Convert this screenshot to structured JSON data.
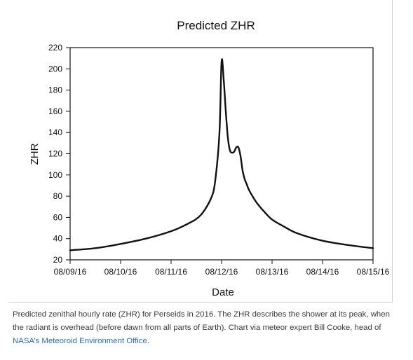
{
  "chart_data": {
    "type": "line",
    "title": "Predicted ZHR",
    "xlabel": "Date",
    "ylabel": "ZHR",
    "x_tick_labels": [
      "08/09/16",
      "08/10/16",
      "08/11/16",
      "08/12/16",
      "08/13/16",
      "08/14/16",
      "08/15/16"
    ],
    "y_tick_labels": [
      "20",
      "40",
      "60",
      "80",
      "100",
      "120",
      "140",
      "160",
      "180",
      "200",
      "220"
    ],
    "ylim": [
      20,
      220
    ],
    "xlim": [
      "08/09/16",
      "08/15/16"
    ],
    "grid": false,
    "legend": "none",
    "series": [
      {
        "color": "#111111",
        "x": [
          "2016-08-09 00:00",
          "2016-08-09 12:00",
          "2016-08-10 00:00",
          "2016-08-10 12:00",
          "2016-08-11 00:00",
          "2016-08-11 08:00",
          "2016-08-11 14:00",
          "2016-08-11 19:00",
          "2016-08-11 21:00",
          "2016-08-11 23:00",
          "2016-08-12 00:00",
          "2016-08-12 01:00",
          "2016-08-12 02:00",
          "2016-08-12 03:00",
          "2016-08-12 04:00",
          "2016-08-12 05:00",
          "2016-08-12 06:00",
          "2016-08-12 07:00",
          "2016-08-12 08:00",
          "2016-08-12 09:00",
          "2016-08-12 10:00",
          "2016-08-12 11:00",
          "2016-08-12 12:00",
          "2016-08-12 13:00",
          "2016-08-12 15:00",
          "2016-08-12 17:00",
          "2016-08-12 20:00",
          "2016-08-13 00:00",
          "2016-08-13 06:00",
          "2016-08-13 12:00",
          "2016-08-14 00:00",
          "2016-08-14 12:00",
          "2016-08-15 00:00"
        ],
        "y": [
          29,
          31,
          35,
          40,
          47,
          54,
          62,
          78,
          95,
          140,
          207,
          190,
          160,
          135,
          123,
          121,
          122,
          126,
          126,
          118,
          104,
          96,
          91,
          86,
          79,
          73,
          66,
          58,
          51,
          45,
          38,
          34,
          31
        ]
      }
    ]
  },
  "caption": {
    "text": "Predicted zenithal hourly rate (ZHR) for Perseids in 2016. The ZHR describes the shower at its peak, when the radiant is overhead (before dawn from all parts of Earth). Chart via meteor expert Bill Cooke, head of ",
    "link_text": "NASA’s Meteoroid Environment Office",
    "end": "."
  }
}
